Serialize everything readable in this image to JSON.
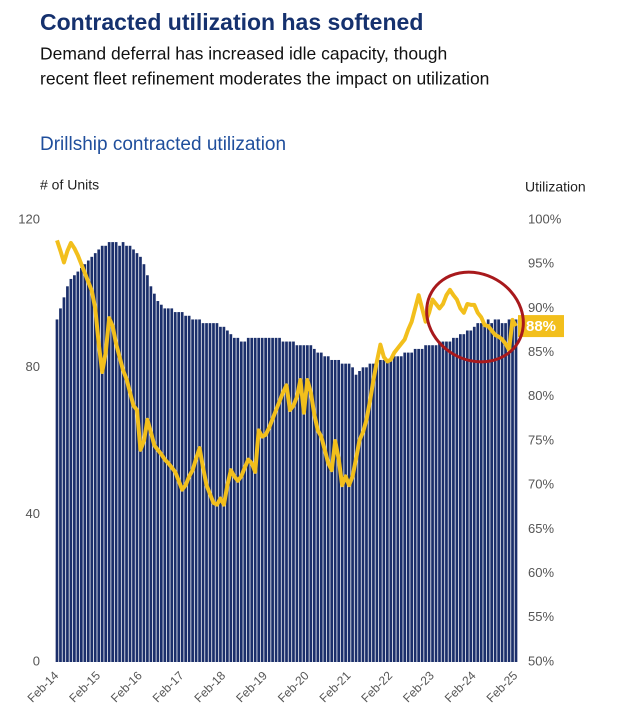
{
  "chart_data": {
    "type": "bar_line",
    "title": "Contracted utilization has softened",
    "subtitle": [
      "Demand deferral has increased idle capacity, though",
      "recent fleet refinement moderates the impact on utilization"
    ],
    "chart_title": "Drillship contracted utilization",
    "y_label": "# of Units",
    "y2_label": "Utilization",
    "categories": [
      "Feb-14",
      null,
      null,
      null,
      null,
      null,
      null,
      null,
      null,
      null,
      null,
      null,
      "Feb-15",
      null,
      null,
      null,
      null,
      null,
      null,
      null,
      null,
      null,
      null,
      null,
      "Feb-16",
      null,
      null,
      null,
      null,
      null,
      null,
      null,
      null,
      null,
      null,
      null,
      "Feb-17",
      null,
      null,
      null,
      null,
      null,
      null,
      null,
      null,
      null,
      null,
      null,
      "Feb-18",
      null,
      null,
      null,
      null,
      null,
      null,
      null,
      null,
      null,
      null,
      null,
      "Feb-19",
      null,
      null,
      null,
      null,
      null,
      null,
      null,
      null,
      null,
      null,
      null,
      "Feb-20",
      null,
      null,
      null,
      null,
      null,
      null,
      null,
      null,
      null,
      null,
      null,
      "Feb-21",
      null,
      null,
      null,
      null,
      null,
      null,
      null,
      null,
      null,
      null,
      null,
      "Feb-22",
      null,
      null,
      null,
      null,
      null,
      null,
      null,
      null,
      null,
      null,
      null,
      "Feb-23",
      null,
      null,
      null,
      null,
      null,
      null,
      null,
      null,
      null,
      null,
      null,
      "Feb-24",
      null,
      null,
      null,
      null,
      null,
      null,
      null,
      null,
      null,
      null,
      null,
      "Feb-25"
    ],
    "series": [
      {
        "name": "# of Units",
        "type": "bar",
        "color": "#1b2f6b",
        "values": [
          93,
          96,
          99,
          102,
          104,
          105,
          106,
          107,
          108,
          109,
          110,
          111,
          112,
          113,
          113,
          114,
          114,
          114,
          113,
          114,
          113,
          113,
          112,
          111,
          110,
          108,
          105,
          102,
          100,
          98,
          97,
          96,
          96,
          96,
          95,
          95,
          95,
          94,
          94,
          93,
          93,
          93,
          92,
          92,
          92,
          92,
          92,
          91,
          91,
          90,
          89,
          88,
          88,
          87,
          87,
          88,
          88,
          88,
          88,
          88,
          88,
          88,
          88,
          88,
          88,
          87,
          87,
          87,
          87,
          86,
          86,
          86,
          86,
          86,
          85,
          84,
          84,
          83,
          83,
          82,
          82,
          82,
          81,
          81,
          81,
          80,
          78,
          79,
          80,
          80,
          81,
          81,
          81,
          82,
          82,
          82,
          82,
          83,
          83,
          83,
          84,
          84,
          84,
          85,
          85,
          85,
          86,
          86,
          86,
          86,
          87,
          87,
          87,
          87,
          88,
          88,
          89,
          89,
          90,
          90,
          91,
          92,
          92,
          92,
          93,
          92,
          93,
          93,
          92,
          92,
          93,
          93,
          93
        ]
      },
      {
        "name": "Utilization",
        "type": "line",
        "axis": "y2",
        "color": "#f2bf1c",
        "values": [
          97.7,
          96.5,
          95.2,
          96.5,
          97.4,
          96.8,
          96,
          95,
          94,
          93,
          92,
          90,
          86,
          82.8,
          85,
          88.9,
          88,
          86,
          84.5,
          83,
          82,
          80.5,
          79,
          78.5,
          74,
          75,
          77.4,
          76,
          74.5,
          74,
          73.5,
          72.9,
          72.5,
          72,
          71.5,
          70.5,
          69.5,
          70,
          71,
          71.7,
          73,
          74.2,
          72,
          70,
          69,
          68,
          67.8,
          68.5,
          67.8,
          70,
          71.7,
          71,
          70.5,
          71,
          72,
          72.9,
          72.5,
          71.5,
          76.2,
          75.5,
          75.7,
          76.5,
          77.5,
          78.5,
          79.5,
          80.5,
          81.3,
          78.5,
          79,
          80,
          81.9,
          78.2,
          81.9,
          80.5,
          78,
          76.2,
          75.5,
          74,
          72.5,
          71.7,
          75,
          73,
          70,
          71,
          70,
          71,
          73,
          75.1,
          76,
          77.4,
          79.5,
          81.9,
          84,
          85.9,
          84.5,
          84,
          84.2,
          85,
          85.5,
          86,
          86.5,
          87.6,
          88.5,
          90,
          91.5,
          90,
          88.5,
          89.5,
          91,
          90.5,
          90,
          90.5,
          91.5,
          92.1,
          91.5,
          91,
          90,
          89.5,
          90.5,
          90.4,
          90.4,
          89.5,
          89,
          88.1,
          88,
          87.5,
          87,
          86.8,
          86.5,
          86,
          85.3,
          88.7,
          88
        ],
        "value_labels": [
          null,
          null,
          null,
          null,
          null,
          null,
          null,
          null,
          null,
          null,
          null,
          null,
          null,
          null,
          null,
          null,
          null,
          null,
          null,
          null,
          null,
          null,
          null,
          null,
          null,
          null,
          null,
          null,
          null,
          null,
          null,
          null,
          null,
          null,
          null,
          null,
          null,
          null,
          null,
          null,
          null,
          null,
          null,
          null,
          null,
          null,
          null,
          null,
          null,
          null,
          null,
          null,
          null,
          null,
          null,
          null,
          null,
          null,
          null,
          null,
          null,
          null,
          null,
          null,
          null,
          null,
          null,
          null,
          null,
          null,
          null,
          null,
          null,
          null,
          null,
          null,
          null,
          null,
          null,
          null,
          null,
          null,
          null,
          null,
          null,
          null,
          null,
          null,
          null,
          null,
          null,
          null,
          null,
          null,
          null,
          null,
          null,
          null,
          null,
          null,
          null,
          null,
          null,
          null,
          null,
          null,
          null,
          null,
          null,
          null,
          null,
          null,
          null,
          null,
          null,
          null,
          null,
          null,
          null,
          null,
          null,
          null,
          null,
          null,
          null,
          null,
          null,
          null,
          null,
          null,
          null,
          null,
          "88%"
        ]
      }
    ],
    "ylim": [
      0,
      120
    ],
    "yticks": [
      0,
      40,
      80,
      120
    ],
    "y2lim": [
      50,
      100
    ],
    "y2ticks": [
      {
        "value": 50,
        "label": "50%"
      },
      {
        "value": 55,
        "label": "55%"
      },
      {
        "value": 60,
        "label": "60%"
      },
      {
        "value": 65,
        "label": "65%"
      },
      {
        "value": 70,
        "label": "70%"
      },
      {
        "value": 75,
        "label": "75%"
      },
      {
        "value": 80,
        "label": "80%"
      },
      {
        "value": 85,
        "label": "85%"
      },
      {
        "value": 90,
        "label": "90%"
      },
      {
        "value": 95,
        "label": "95%"
      },
      {
        "value": 100,
        "label": "100%"
      }
    ],
    "grid": false
  }
}
